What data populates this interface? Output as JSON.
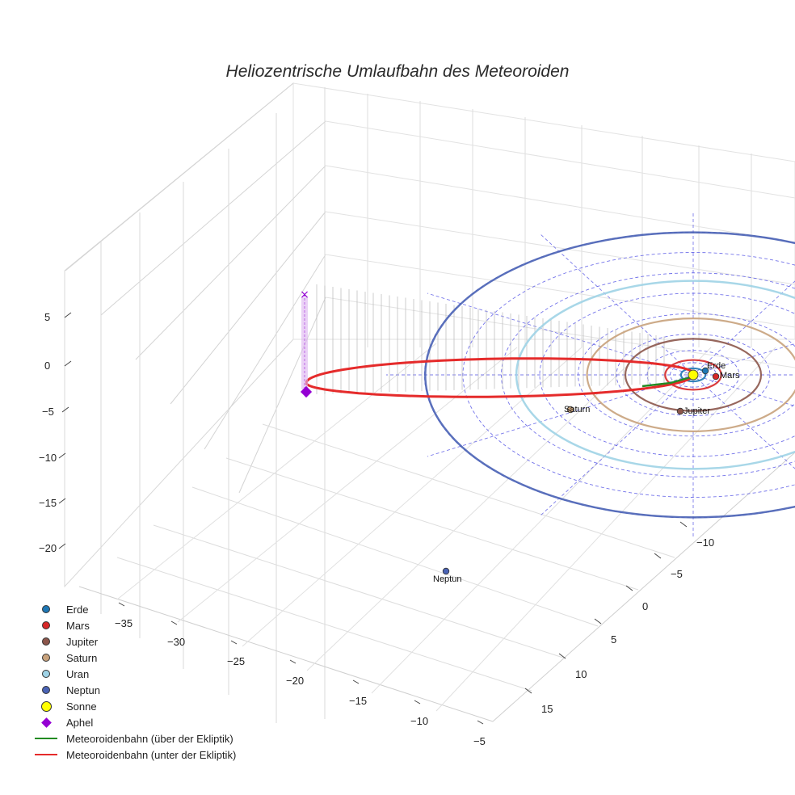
{
  "chart_data": {
    "type": "scatter",
    "title": "Heliozentrische Umlaufbahn des Meteoroiden",
    "x_ticks": [
      "−35",
      "−30",
      "−25",
      "−20",
      "−15",
      "−10",
      "−5"
    ],
    "y_ticks": [
      "−10",
      "−5",
      "0",
      "5",
      "10",
      "15"
    ],
    "z_ticks": [
      "5",
      "0",
      "−5",
      "−10",
      "−15",
      "−20"
    ],
    "axis_ranges": {
      "x": [
        -38,
        -5
      ],
      "y": [
        -14,
        17
      ],
      "z": [
        -24,
        8
      ]
    },
    "grid": true,
    "legend_position": "bottom-left",
    "planets": [
      {
        "name": "Erde",
        "label": "Erde",
        "color": "#1f77b4",
        "orbit_radius_au": 1.0
      },
      {
        "name": "Mars",
        "label": "Mars",
        "color": "#d62728",
        "orbit_radius_au": 1.52
      },
      {
        "name": "Jupiter",
        "label": "Jupiter",
        "color": "#8c564b",
        "orbit_radius_au": 5.2
      },
      {
        "name": "Saturn",
        "label": "Saturn",
        "color": "#c8a27c",
        "orbit_radius_au": 9.54
      },
      {
        "name": "Uran",
        "label": "",
        "color": "#9fd3e6",
        "orbit_radius_au": 19.2
      },
      {
        "name": "Neptun",
        "label": "Neptun",
        "color": "#4a63b5",
        "orbit_radius_au": 30.1
      }
    ],
    "sun": {
      "name": "Sonne",
      "color": "#ffff00"
    },
    "aphel": {
      "name": "Aphel",
      "color": "#9400d3"
    },
    "meteoroid_orbit": {
      "above": {
        "name": "Meteoroidenbahn (über der Ekliptik)",
        "color": "#228b22"
      },
      "below": {
        "name": "Meteoroidenbahn (unter der Ekliptik)",
        "color": "#e52b2b"
      }
    }
  },
  "legend": [
    {
      "label": "Erde",
      "symbol": "dot",
      "color": "#1f77b4"
    },
    {
      "label": "Mars",
      "symbol": "dot",
      "color": "#d62728"
    },
    {
      "label": "Jupiter",
      "symbol": "dot",
      "color": "#8c564b"
    },
    {
      "label": "Saturn",
      "symbol": "dot",
      "color": "#c8a27c"
    },
    {
      "label": "Uran",
      "symbol": "dot",
      "color": "#9fd3e6"
    },
    {
      "label": "Neptun",
      "symbol": "dot",
      "color": "#4a63b5"
    },
    {
      "label": "Sonne",
      "symbol": "bigdot",
      "color": "#ffff00"
    },
    {
      "label": "Aphel",
      "symbol": "diamond",
      "color": "#9400d3"
    },
    {
      "label": "Meteoroidenbahn (über der Ekliptik)",
      "symbol": "line",
      "color": "#228b22"
    },
    {
      "label": "Meteoroidenbahn (unter der Ekliptik)",
      "symbol": "line",
      "color": "#e52b2b"
    }
  ]
}
